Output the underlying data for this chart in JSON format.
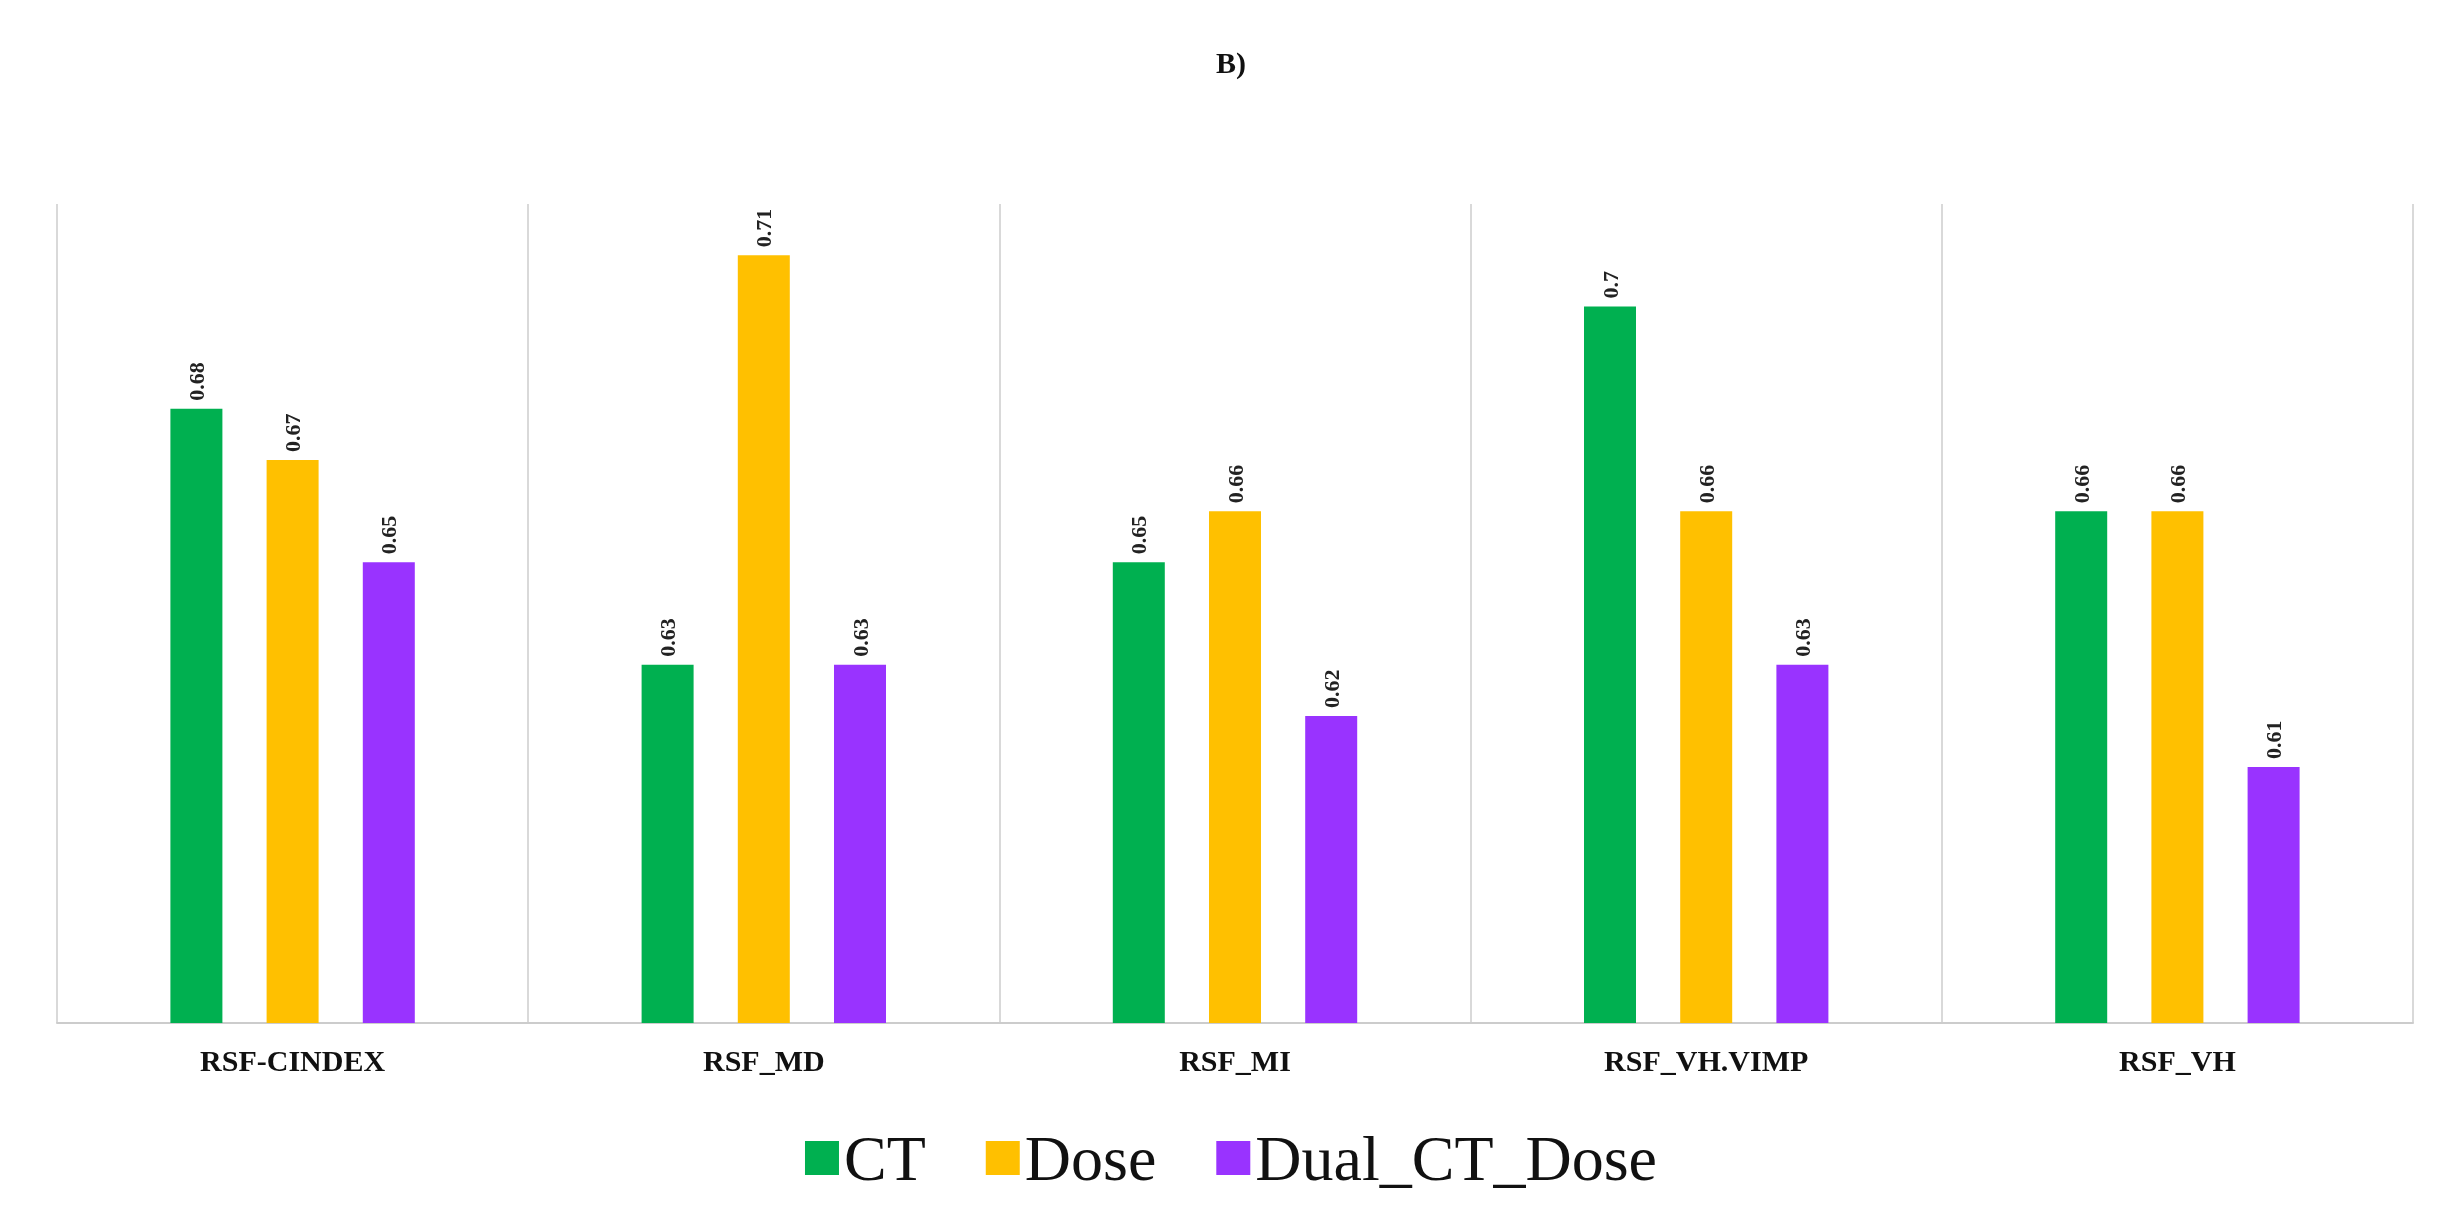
{
  "chart_data": {
    "type": "bar",
    "title": "B)",
    "categories": [
      "RSF-CINDEX",
      "RSF_MD",
      "RSF_MI",
      "RSF_VH.VIMP",
      "RSF_VH"
    ],
    "series": [
      {
        "name": "CT",
        "color": "#00b050",
        "values": [
          0.68,
          0.63,
          0.65,
          0.7,
          0.66
        ]
      },
      {
        "name": "Dose",
        "color": "#ffc000",
        "values": [
          0.67,
          0.71,
          0.66,
          0.66,
          0.66
        ]
      },
      {
        "name": "Dual_CT_Dose",
        "color": "#9933ff",
        "values": [
          0.65,
          0.63,
          0.62,
          0.63,
          0.61
        ]
      }
    ],
    "ylim": [
      0.56,
      0.72
    ],
    "data_labels": true,
    "grid": "x",
    "legend": "bottom",
    "tick_labels": "x"
  }
}
